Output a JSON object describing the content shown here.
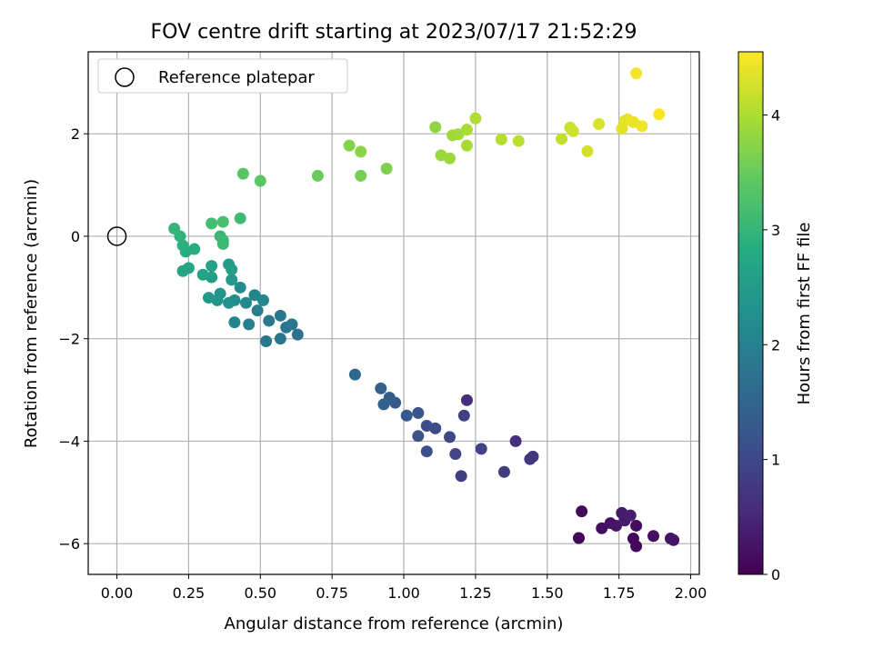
{
  "chart_data": {
    "type": "scatter",
    "title": "FOV centre drift starting at 2023/07/17 21:52:29",
    "xlabel": "Angular distance from reference (arcmin)",
    "ylabel": "Rotation from reference (arcmin)",
    "xlim": [
      -0.1,
      2.03
    ],
    "ylim": [
      -6.6,
      3.6
    ],
    "xticks": [
      0.0,
      0.25,
      0.5,
      0.75,
      1.0,
      1.25,
      1.5,
      1.75,
      2.0
    ],
    "xtick_labels": [
      "0.00",
      "0.25",
      "0.50",
      "0.75",
      "1.00",
      "1.25",
      "1.50",
      "1.75",
      "2.00"
    ],
    "yticks": [
      -6,
      -4,
      -2,
      0,
      2
    ],
    "ytick_labels": [
      "−6",
      "−4",
      "−2",
      "0",
      "2"
    ],
    "grid": true,
    "legend": {
      "placement": "upper-left",
      "entries": [
        "Reference platepar"
      ]
    },
    "reference_point": {
      "x": 0.0,
      "y": 0.0,
      "marker": "open-circle"
    },
    "colorbar": {
      "label": "Hours from first FF file",
      "colormap": "viridis",
      "range": [
        0,
        4.55
      ],
      "ticks": [
        0,
        1,
        2,
        3,
        4
      ],
      "tick_labels": [
        "0",
        "1",
        "2",
        "3",
        "4"
      ]
    },
    "points": [
      {
        "x": 1.61,
        "y": -5.89,
        "c": 0.05
      },
      {
        "x": 1.62,
        "y": -5.37,
        "c": 0.12
      },
      {
        "x": 1.69,
        "y": -5.7,
        "c": 0.18
      },
      {
        "x": 1.72,
        "y": -5.6,
        "c": 0.22
      },
      {
        "x": 1.74,
        "y": -5.65,
        "c": 0.27
      },
      {
        "x": 1.76,
        "y": -5.4,
        "c": 0.3
      },
      {
        "x": 1.77,
        "y": -5.55,
        "c": 0.34
      },
      {
        "x": 1.79,
        "y": -5.45,
        "c": 0.38
      },
      {
        "x": 1.8,
        "y": -5.9,
        "c": 0.08
      },
      {
        "x": 1.81,
        "y": -5.65,
        "c": 0.15
      },
      {
        "x": 1.81,
        "y": -6.05,
        "c": 0.1
      },
      {
        "x": 1.87,
        "y": -5.85,
        "c": 0.2
      },
      {
        "x": 1.93,
        "y": -5.9,
        "c": 0.25
      },
      {
        "x": 1.94,
        "y": -5.93,
        "c": 0.28
      },
      {
        "x": 1.22,
        "y": -3.2,
        "c": 0.6
      },
      {
        "x": 1.39,
        "y": -4.0,
        "c": 0.62
      },
      {
        "x": 1.44,
        "y": -4.35,
        "c": 0.7
      },
      {
        "x": 1.45,
        "y": -4.3,
        "c": 0.75
      },
      {
        "x": 1.35,
        "y": -4.6,
        "c": 0.8
      },
      {
        "x": 1.2,
        "y": -4.68,
        "c": 0.85
      },
      {
        "x": 1.27,
        "y": -4.15,
        "c": 0.9
      },
      {
        "x": 1.18,
        "y": -4.25,
        "c": 0.95
      },
      {
        "x": 1.21,
        "y": -3.5,
        "c": 0.88
      },
      {
        "x": 1.16,
        "y": -3.92,
        "c": 1.0
      },
      {
        "x": 1.11,
        "y": -3.75,
        "c": 1.05
      },
      {
        "x": 1.08,
        "y": -4.2,
        "c": 1.1
      },
      {
        "x": 1.05,
        "y": -3.9,
        "c": 1.15
      },
      {
        "x": 1.08,
        "y": -3.7,
        "c": 1.08
      },
      {
        "x": 1.05,
        "y": -3.45,
        "c": 1.2
      },
      {
        "x": 1.01,
        "y": -3.5,
        "c": 1.25
      },
      {
        "x": 0.97,
        "y": -3.25,
        "c": 1.3
      },
      {
        "x": 0.95,
        "y": -3.15,
        "c": 1.35
      },
      {
        "x": 0.93,
        "y": -3.28,
        "c": 1.4
      },
      {
        "x": 0.92,
        "y": -2.97,
        "c": 1.45
      },
      {
        "x": 0.83,
        "y": -2.7,
        "c": 1.55
      },
      {
        "x": 0.63,
        "y": -1.92,
        "c": 1.7
      },
      {
        "x": 0.59,
        "y": -1.78,
        "c": 1.75
      },
      {
        "x": 0.61,
        "y": -1.72,
        "c": 1.8
      },
      {
        "x": 0.57,
        "y": -2.0,
        "c": 1.78
      },
      {
        "x": 0.57,
        "y": -1.55,
        "c": 1.85
      },
      {
        "x": 0.52,
        "y": -2.05,
        "c": 1.82
      },
      {
        "x": 0.53,
        "y": -1.65,
        "c": 1.88
      },
      {
        "x": 0.49,
        "y": -1.45,
        "c": 1.95
      },
      {
        "x": 0.46,
        "y": -1.72,
        "c": 2.0
      },
      {
        "x": 0.51,
        "y": -1.25,
        "c": 2.05
      },
      {
        "x": 0.48,
        "y": -1.15,
        "c": 2.1
      },
      {
        "x": 0.45,
        "y": -1.3,
        "c": 2.15
      },
      {
        "x": 0.43,
        "y": -1.0,
        "c": 2.2
      },
      {
        "x": 0.41,
        "y": -1.25,
        "c": 2.25
      },
      {
        "x": 0.39,
        "y": -1.3,
        "c": 2.3
      },
      {
        "x": 0.41,
        "y": -1.68,
        "c": 2.1
      },
      {
        "x": 0.35,
        "y": -1.25,
        "c": 2.35
      },
      {
        "x": 0.36,
        "y": -1.12,
        "c": 2.4
      },
      {
        "x": 0.32,
        "y": -1.2,
        "c": 2.45
      },
      {
        "x": 0.39,
        "y": -0.55,
        "c": 2.5
      },
      {
        "x": 0.4,
        "y": -0.65,
        "c": 2.55
      },
      {
        "x": 0.4,
        "y": -0.85,
        "c": 2.45
      },
      {
        "x": 0.33,
        "y": -0.58,
        "c": 2.6
      },
      {
        "x": 0.33,
        "y": -0.8,
        "c": 2.55
      },
      {
        "x": 0.3,
        "y": -0.75,
        "c": 2.65
      },
      {
        "x": 0.25,
        "y": -0.62,
        "c": 2.7
      },
      {
        "x": 0.23,
        "y": -0.68,
        "c": 2.68
      },
      {
        "x": 0.24,
        "y": -0.3,
        "c": 2.8
      },
      {
        "x": 0.27,
        "y": -0.25,
        "c": 2.85
      },
      {
        "x": 0.23,
        "y": -0.18,
        "c": 2.9
      },
      {
        "x": 0.22,
        "y": 0.0,
        "c": 2.95
      },
      {
        "x": 0.2,
        "y": 0.15,
        "c": 3.0
      },
      {
        "x": 0.36,
        "y": 0.0,
        "c": 3.05
      },
      {
        "x": 0.37,
        "y": -0.15,
        "c": 3.1
      },
      {
        "x": 0.37,
        "y": -0.08,
        "c": 3.08
      },
      {
        "x": 0.33,
        "y": 0.25,
        "c": 3.15
      },
      {
        "x": 0.37,
        "y": 0.28,
        "c": 3.2
      },
      {
        "x": 0.43,
        "y": 0.35,
        "c": 3.1
      },
      {
        "x": 0.44,
        "y": 1.22,
        "c": 3.35
      },
      {
        "x": 0.5,
        "y": 1.08,
        "c": 3.4
      },
      {
        "x": 0.7,
        "y": 1.18,
        "c": 3.5
      },
      {
        "x": 0.81,
        "y": 1.77,
        "c": 3.7
      },
      {
        "x": 0.85,
        "y": 1.65,
        "c": 3.75
      },
      {
        "x": 0.85,
        "y": 1.18,
        "c": 3.6
      },
      {
        "x": 0.94,
        "y": 1.32,
        "c": 3.65
      },
      {
        "x": 1.11,
        "y": 2.13,
        "c": 3.8
      },
      {
        "x": 1.13,
        "y": 1.58,
        "c": 3.85
      },
      {
        "x": 1.16,
        "y": 1.52,
        "c": 3.88
      },
      {
        "x": 1.17,
        "y": 1.97,
        "c": 3.9
      },
      {
        "x": 1.19,
        "y": 1.99,
        "c": 3.92
      },
      {
        "x": 1.22,
        "y": 1.77,
        "c": 3.95
      },
      {
        "x": 1.22,
        "y": 2.08,
        "c": 3.97
      },
      {
        "x": 1.25,
        "y": 2.3,
        "c": 4.0
      },
      {
        "x": 1.34,
        "y": 1.89,
        "c": 4.05
      },
      {
        "x": 1.4,
        "y": 1.86,
        "c": 4.1
      },
      {
        "x": 1.55,
        "y": 1.9,
        "c": 4.15
      },
      {
        "x": 1.58,
        "y": 2.12,
        "c": 4.2
      },
      {
        "x": 1.59,
        "y": 2.05,
        "c": 4.22
      },
      {
        "x": 1.64,
        "y": 1.66,
        "c": 4.25
      },
      {
        "x": 1.68,
        "y": 2.19,
        "c": 4.28
      },
      {
        "x": 1.76,
        "y": 2.1,
        "c": 4.35
      },
      {
        "x": 1.77,
        "y": 2.25,
        "c": 4.4
      },
      {
        "x": 1.78,
        "y": 2.28,
        "c": 4.38
      },
      {
        "x": 1.8,
        "y": 2.23,
        "c": 4.42
      },
      {
        "x": 1.81,
        "y": 3.18,
        "c": 4.48
      },
      {
        "x": 1.83,
        "y": 2.15,
        "c": 4.45
      },
      {
        "x": 1.89,
        "y": 2.38,
        "c": 4.5
      }
    ]
  }
}
